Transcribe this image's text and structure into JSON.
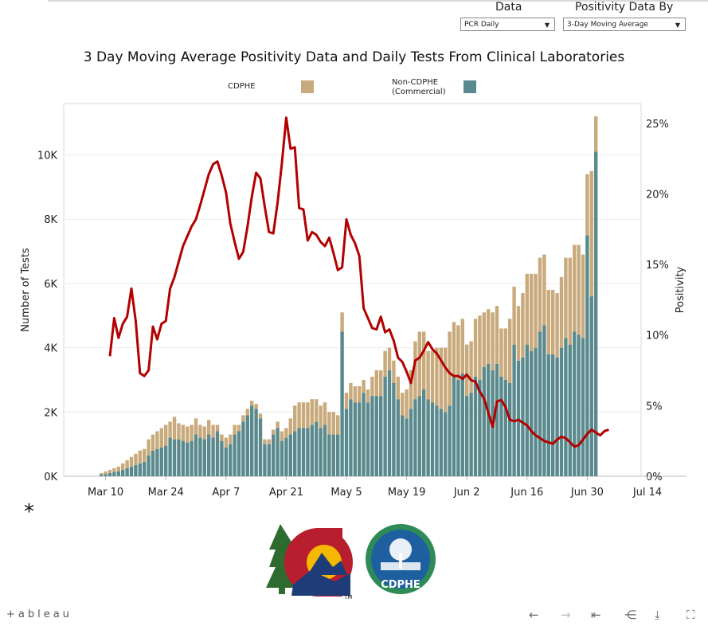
{
  "controls": {
    "data_label": "Data",
    "data_value": "PCR Daily",
    "positivity_label": "Positivity Data By",
    "positivity_value": "3-Day Moving Average"
  },
  "title": "3 Day Moving Average Positivity Data and Daily Tests From Clinical Laboratories",
  "footnote": "*",
  "logo_text": "CDPHE",
  "toolbar": {
    "brand": "+ableau"
  },
  "colors": {
    "cdphe": "#c9aa7c",
    "non_cdphe": "#5a8a8d",
    "positivity": "#b30000"
  },
  "chart_data": {
    "type": "bar",
    "stacked": true,
    "title": "3 Day Moving Average Positivity Data and Daily Tests From Clinical Laboratories",
    "ylabel": "Number of Tests",
    "y2label": "Positivity",
    "ylim": [
      0,
      11600
    ],
    "y2lim": [
      0,
      26.4
    ],
    "yticks": [
      "0K",
      "2K",
      "4K",
      "6K",
      "8K",
      "10K"
    ],
    "y2ticks": [
      "0%",
      "5%",
      "10%",
      "15%",
      "20%",
      "25%"
    ],
    "xticks": [
      "Mar 10",
      "Mar 24",
      "Apr 7",
      "Apr 21",
      "May 5",
      "May 19",
      "Jun 2",
      "Jun 16",
      "Jun 30",
      "Jul 14"
    ],
    "grid": true,
    "legend": [
      {
        "name": "CDPHE",
        "color": "#c9aa7c"
      },
      {
        "name": "Non-CDPHE (Commercial)",
        "color": "#5a8a8d"
      }
    ],
    "start_date": "Mar 6",
    "series": [
      {
        "name": "CDPHE",
        "values": [
          0,
          0,
          0,
          50,
          80,
          100,
          120,
          150,
          200,
          250,
          300,
          350,
          400,
          400,
          500,
          500,
          550,
          600,
          650,
          500,
          700,
          500,
          500,
          500,
          500,
          500,
          400,
          400,
          450,
          400,
          200,
          200,
          300,
          300,
          300,
          200,
          200,
          200,
          150,
          150,
          150,
          150,
          150,
          150,
          200,
          300,
          300,
          500,
          800,
          800,
          800,
          800,
          800,
          700,
          700,
          700,
          700,
          700,
          600,
          600,
          500,
          500,
          500,
          500,
          400,
          400,
          600,
          800,
          800,
          800,
          700,
          700,
          700,
          700,
          900,
          1200,
          1800,
          2000,
          1800,
          1500,
          1600,
          1800,
          1900,
          2000,
          2300,
          1700,
          1700,
          1700,
          1600,
          1600,
          1800,
          2000,
          1700,
          1700,
          1800,
          1800,
          1500,
          1600,
          2000,
          1800,
          1700,
          2000,
          2200,
          2400,
          2300,
          2300,
          2200,
          2000,
          2000,
          2000,
          2200,
          2500,
          2700,
          2700,
          2800,
          2600,
          1900,
          3900,
          1100
        ]
      },
      {
        "name": "Non-CDPHE (Commercial)",
        "values": [
          0,
          0,
          0,
          50,
          70,
          100,
          130,
          150,
          200,
          250,
          300,
          350,
          400,
          450,
          650,
          800,
          850,
          900,
          950,
          1200,
          1150,
          1150,
          1100,
          1050,
          1100,
          1300,
          1200,
          1150,
          1300,
          1200,
          1400,
          1100,
          900,
          1000,
          1300,
          1400,
          1700,
          1900,
          2200,
          2100,
          1800,
          1000,
          1000,
          1300,
          1500,
          1100,
          1200,
          1300,
          1400,
          1500,
          1500,
          1500,
          1600,
          1700,
          1500,
          1600,
          1300,
          1300,
          1300,
          4500,
          2100,
          2400,
          2300,
          2300,
          2600,
          2300,
          2500,
          2500,
          2500,
          3100,
          3300,
          2900,
          2400,
          1900,
          1800,
          2100,
          2400,
          2500,
          2700,
          2400,
          2300,
          2200,
          2100,
          2000,
          2200,
          3100,
          3000,
          3200,
          2500,
          2600,
          3100,
          3000,
          3400,
          3500,
          3300,
          3500,
          3100,
          3000,
          2900,
          4100,
          3600,
          3700,
          4100,
          3900,
          4000,
          4500,
          4700,
          3800,
          3800,
          3700,
          4000,
          4300,
          4100,
          4500,
          4400,
          4300,
          7500,
          5600,
          10100
        ]
      },
      {
        "name": "Positivity",
        "type": "line",
        "values": [
          8.5,
          11.2,
          9.8,
          10.8,
          11.3,
          13.3,
          11.0,
          7.3,
          7.1,
          7.5,
          10.6,
          9.7,
          10.8,
          11.0,
          13.3,
          14.1,
          15.2,
          16.3,
          17.0,
          17.7,
          18.2,
          19.2,
          20.3,
          21.4,
          22.1,
          22.3,
          21.3,
          20.1,
          17.9,
          16.6,
          15.4,
          15.9,
          17.7,
          19.8,
          21.5,
          21.1,
          19.1,
          17.3,
          17.2,
          19.4,
          22.2,
          25.4,
          23.2,
          23.3,
          19.0,
          18.9,
          16.7,
          17.3,
          17.1,
          16.6,
          16.3,
          16.9,
          15.8,
          14.6,
          14.8,
          18.2,
          17.1,
          16.5,
          15.6,
          11.9,
          11.2,
          10.5,
          10.4,
          11.3,
          10.2,
          10.4,
          9.6,
          8.4,
          8.1,
          7.4,
          6.6,
          8.2,
          8.4,
          8.9,
          9.5,
          9.0,
          8.7,
          8.2,
          7.7,
          7.3,
          7.1,
          7.1,
          6.9,
          7.2,
          6.8,
          6.7,
          6.0,
          5.5,
          4.5,
          3.5,
          5.3,
          5.4,
          4.9,
          4.0,
          3.9,
          4.0,
          3.8,
          3.6,
          3.2,
          2.9,
          2.7,
          2.5,
          2.4,
          2.3,
          2.6,
          2.8,
          2.7,
          2.4,
          2.1,
          2.2,
          2.6,
          3.0,
          3.3,
          3.1,
          2.9,
          3.2,
          3.3
        ]
      }
    ]
  }
}
